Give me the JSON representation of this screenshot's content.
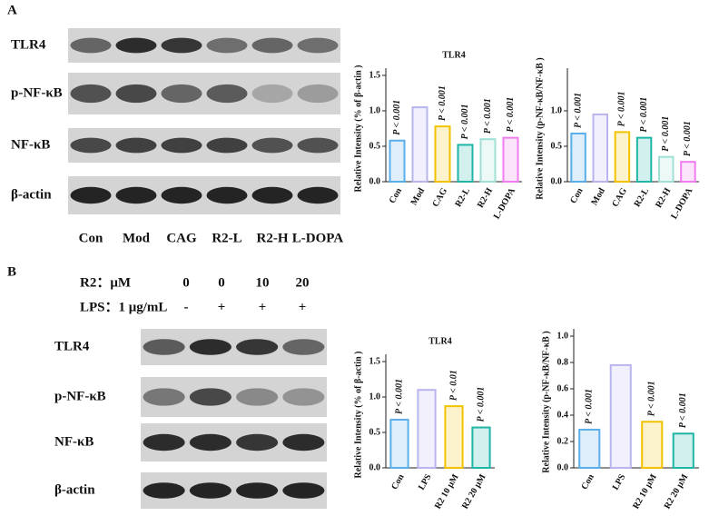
{
  "panel_a": {
    "label": "A",
    "blots": [
      "TLR4",
      "p-NF-κB",
      "NF-κB",
      "β-actin"
    ],
    "lanes": [
      "Con",
      "Mod",
      "CAG",
      "R2-L",
      "R2-H",
      "L-DOPA"
    ]
  },
  "panel_b": {
    "label": "B",
    "treatments": [
      {
        "name": "R2：μM",
        "levels": [
          "0",
          "0",
          "10",
          "20"
        ]
      },
      {
        "name": "LPS：1 μg/mL",
        "levels": [
          "-",
          "+",
          "+",
          "+"
        ]
      }
    ],
    "blots": [
      "TLR4",
      "p-NF-κB",
      "NF-κB",
      "β-actin"
    ]
  },
  "chart_data": [
    {
      "type": "bar",
      "title": "TLR4",
      "y_label": "Relative Intensity (% of β-actin )",
      "categories": [
        "Con",
        "Mod",
        "CAG",
        "R2-L",
        "R2-H",
        "L-DOPA"
      ],
      "values": [
        0.58,
        1.05,
        0.78,
        0.52,
        0.6,
        0.62
      ],
      "colors": [
        "#5aaeea",
        "#b8b4ee",
        "#f2c200",
        "#1fb5a6",
        "#9fdfd6",
        "#f07ef0"
      ],
      "annotations": [
        "P < 0.001",
        null,
        "P < 0.001",
        "P < 0.001",
        "P < 0.001",
        "P < 0.001"
      ],
      "ylim": [
        0,
        1.5
      ],
      "yticks": [
        {
          "value": 0,
          "label": "0.0"
        },
        {
          "value": 0.5,
          "label": "0.5"
        },
        {
          "value": 1,
          "label": "1.0"
        },
        {
          "value": 1.5,
          "label": "1.5"
        }
      ]
    },
    {
      "type": "bar",
      "y_label": "Relative Intensity (p-NF-κB/NF-κB )",
      "categories": [
        "Con",
        "Mod",
        "CAG",
        "R2-L",
        "R2-H",
        "L-DOPA"
      ],
      "values": [
        0.68,
        0.95,
        0.7,
        0.62,
        0.35,
        0.28
      ],
      "colors": [
        "#5aaeea",
        "#b8b4ee",
        "#f2c200",
        "#1fb5a6",
        "#9fdfd6",
        "#f07ef0"
      ],
      "annotations": [
        "P < 0.001",
        null,
        "P < 0.001",
        "P < 0.001",
        "P < 0.001",
        "P < 0.001"
      ],
      "ylim": [
        0,
        1.5
      ],
      "yticks": [
        {
          "value": 0,
          "label": "0.0"
        },
        {
          "value": 0.5,
          "label": "0.5"
        },
        {
          "value": 1,
          "label": "1.0"
        }
      ]
    },
    {
      "type": "bar",
      "title": "TLR4",
      "y_label": "Relative Intensity (% of β-actin )",
      "categories": [
        "Con",
        "LPS",
        "R2 10 μM",
        "R2 20 μM"
      ],
      "values": [
        0.68,
        1.1,
        0.87,
        0.57
      ],
      "colors": [
        "#5aaeea",
        "#b8b4ee",
        "#f2c200",
        "#1fb5a6"
      ],
      "annotations": [
        "P < 0.001",
        null,
        "P < 0.01",
        "P < 0.001"
      ],
      "ylim": [
        0,
        1.5
      ],
      "yticks": [
        {
          "value": 0,
          "label": "0.0"
        },
        {
          "value": 0.5,
          "label": "0.5"
        },
        {
          "value": 1,
          "label": "1.0"
        },
        {
          "value": 1.5,
          "label": "1.5"
        }
      ]
    },
    {
      "type": "bar",
      "y_label": "Relative Intensity (p-NF-κB/NF-κB )",
      "categories": [
        "Con",
        "LPS",
        "R2 10 μM",
        "R2 20 μM"
      ],
      "values": [
        0.29,
        0.78,
        0.35,
        0.26
      ],
      "colors": [
        "#5aaeea",
        "#b8b4ee",
        "#f2c200",
        "#1fb5a6"
      ],
      "annotations": [
        "P < 0.001",
        null,
        "P < 0.001",
        "P < 0.001"
      ],
      "ylim": [
        0,
        1
      ],
      "yticks": [
        {
          "value": 0,
          "label": "0.0"
        },
        {
          "value": 0.2,
          "label": "0.2"
        },
        {
          "value": 0.4,
          "label": "0.4"
        },
        {
          "value": 0.6,
          "label": "0.6"
        },
        {
          "value": 0.8,
          "label": "0.8"
        },
        {
          "value": 1,
          "label": "1.0"
        }
      ]
    }
  ]
}
